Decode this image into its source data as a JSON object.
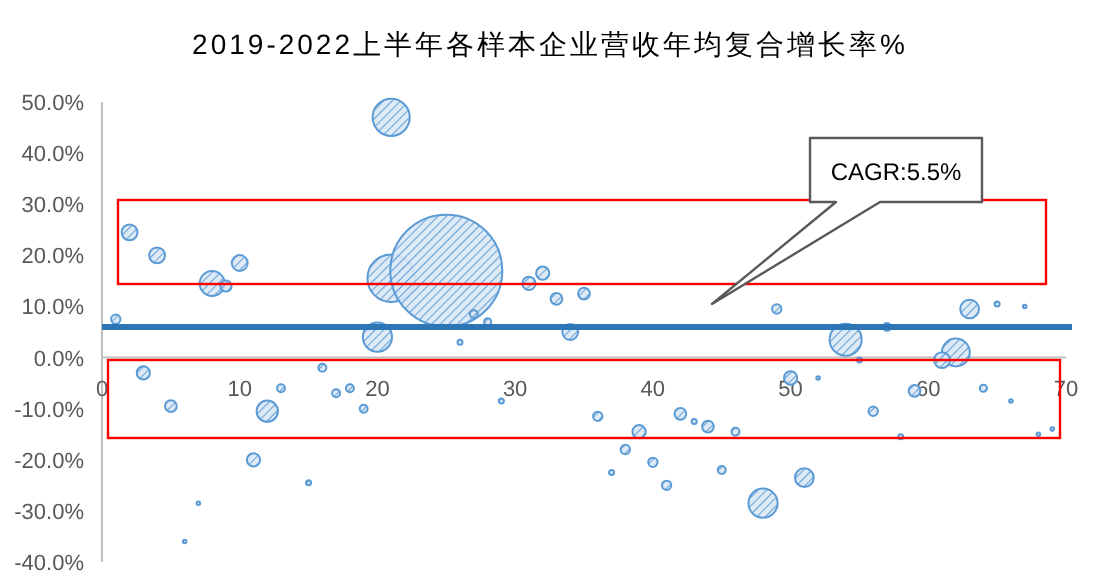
{
  "chart_data": {
    "type": "bubble",
    "title": "2019-2022上半年各样本企业营收年均复合增长率%",
    "x": [
      2,
      4,
      8,
      9,
      10,
      21,
      21,
      25,
      31,
      32,
      33,
      1,
      27,
      28,
      35,
      49,
      63,
      65,
      67,
      20,
      26,
      3,
      5,
      12,
      13,
      16,
      17,
      18,
      19,
      11,
      15,
      7,
      6,
      29,
      34,
      54,
      57,
      62,
      61,
      55,
      50,
      52,
      59,
      64,
      66,
      68,
      69,
      36,
      39,
      38,
      37,
      40,
      41,
      42,
      43,
      44,
      46,
      45,
      51,
      48,
      56,
      58
    ],
    "values": [
      24.5,
      20,
      14.5,
      14,
      18.5,
      47,
      15.5,
      17,
      14.5,
      16.5,
      11.5,
      7.5,
      8.5,
      7,
      12.5,
      9.5,
      9.5,
      10.5,
      10,
      4,
      3,
      -3,
      -9.5,
      -10.5,
      -6,
      -2,
      -7,
      -6,
      -10,
      -20,
      -24.5,
      -28.5,
      -36,
      -8.5,
      5,
      3.5,
      6,
      1,
      -0.5,
      -0.5,
      -4,
      -4,
      -6.5,
      -6,
      -8.5,
      -15,
      -14,
      -11.5,
      -14.5,
      -18,
      -22.5,
      -20.5,
      -25,
      -11,
      -12.5,
      -13.5,
      -14.5,
      -22,
      -23.5,
      -28.5,
      -10.5,
      -15.5
    ],
    "sizes": [
      0.02,
      0.02,
      0.05,
      0.01,
      0.02,
      0.11,
      0.18,
      1,
      0.014,
      0.014,
      0.011,
      0.007,
      0.005,
      0.004,
      0.011,
      0.007,
      0.028,
      0.002,
      0.001,
      0.068,
      0.002,
      0.014,
      0.011,
      0.036,
      0.005,
      0.005,
      0.005,
      0.005,
      0.005,
      0.014,
      0.002,
      0.001,
      0.001,
      0.002,
      0.02,
      0.082,
      0.005,
      0.062,
      0.02,
      0.002,
      0.014,
      0.001,
      0.011,
      0.004,
      0.001,
      0.001,
      0.001,
      0.007,
      0.014,
      0.007,
      0.002,
      0.007,
      0.007,
      0.011,
      0.002,
      0.011,
      0.005,
      0.005,
      0.028,
      0.068,
      0.007,
      0.002
    ],
    "color": "#5b9bd5",
    "xlim": [
      0,
      70
    ],
    "xticks": [
      0,
      10,
      20,
      30,
      40,
      50,
      60,
      70
    ],
    "ylim": [
      -40,
      50
    ],
    "yticks": [
      {
        "value": -40,
        "label": "-40.0%"
      },
      {
        "value": -30,
        "label": "-30.0%"
      },
      {
        "value": -20,
        "label": "-20.0%"
      },
      {
        "value": -10,
        "label": "-10.0%"
      },
      {
        "value": 0,
        "label": "0.0%"
      },
      {
        "value": 10,
        "label": "10.0%"
      },
      {
        "value": 20,
        "label": "20.0%"
      },
      {
        "value": 30,
        "label": "30.0%"
      },
      {
        "value": 40,
        "label": "40.0%"
      },
      {
        "value": 50,
        "label": "50.0%"
      }
    ],
    "ref_lines": [
      {
        "axis": "y",
        "value": 6,
        "color": "#2e75b6"
      }
    ],
    "annotations": [
      "CAGR:5.5%"
    ],
    "grid": false
  }
}
